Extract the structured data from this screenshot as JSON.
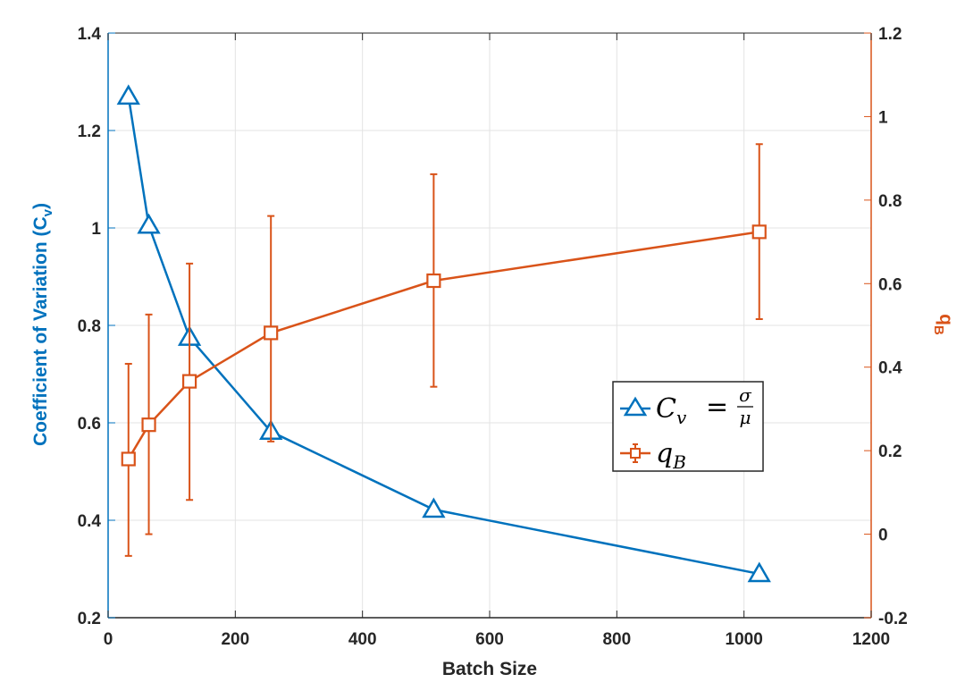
{
  "chart_data": {
    "type": "line",
    "title": "",
    "xlabel": "Batch Size",
    "ylabel_left": "Coefficient of Variation (C",
    "ylabel_left_sub": "v",
    "ylabel_left_close": ")",
    "ylabel_right": "q",
    "ylabel_right_sub": "B",
    "xlim": [
      0,
      1200
    ],
    "ylim_left": [
      0.2,
      1.4
    ],
    "ylim_right": [
      -0.2,
      1.2
    ],
    "x_ticks": [
      0,
      200,
      400,
      600,
      800,
      1000,
      1200
    ],
    "x_tick_labels": [
      "0",
      "200",
      "400",
      "600",
      "800",
      "1000",
      "1200"
    ],
    "y_left_ticks": [
      0.2,
      0.4,
      0.6,
      0.8,
      1.0,
      1.2,
      1.4
    ],
    "y_left_tick_labels": [
      "0.2",
      "0.4",
      "0.6",
      "0.8",
      "1",
      "1.2",
      "1.4"
    ],
    "y_right_ticks": [
      -0.2,
      0,
      0.2,
      0.4,
      0.6,
      0.8,
      1.0,
      1.2
    ],
    "y_right_tick_labels": [
      "-0.2",
      "0",
      "0.2",
      "0.4",
      "0.6",
      "0.8",
      "1",
      "1.2"
    ],
    "grid": true,
    "legend_position": "center-right",
    "series": [
      {
        "name": "Cv = σ/μ",
        "axis": "left",
        "color": "#0072BD",
        "marker": "triangle",
        "x": [
          32,
          64,
          128,
          256,
          512,
          1024
        ],
        "values": [
          1.27,
          1.005,
          0.775,
          0.582,
          0.422,
          0.29
        ]
      },
      {
        "name": "qB",
        "axis": "right",
        "color": "#D95319",
        "marker": "square",
        "x": [
          32,
          64,
          128,
          256,
          512,
          1024
        ],
        "values": [
          0.18,
          0.262,
          0.366,
          0.482,
          0.607,
          0.724
        ],
        "err_low": [
          -0.052,
          0.0,
          0.082,
          0.222,
          0.353,
          0.515
        ],
        "err_high": [
          0.408,
          0.526,
          0.648,
          0.762,
          0.862,
          0.934
        ]
      }
    ],
    "legend": {
      "cv_symbol": "C",
      "cv_sub": "v",
      "equals": "=",
      "sigma": "σ",
      "mu": "μ",
      "q_symbol": "q",
      "q_sub": "B"
    }
  }
}
